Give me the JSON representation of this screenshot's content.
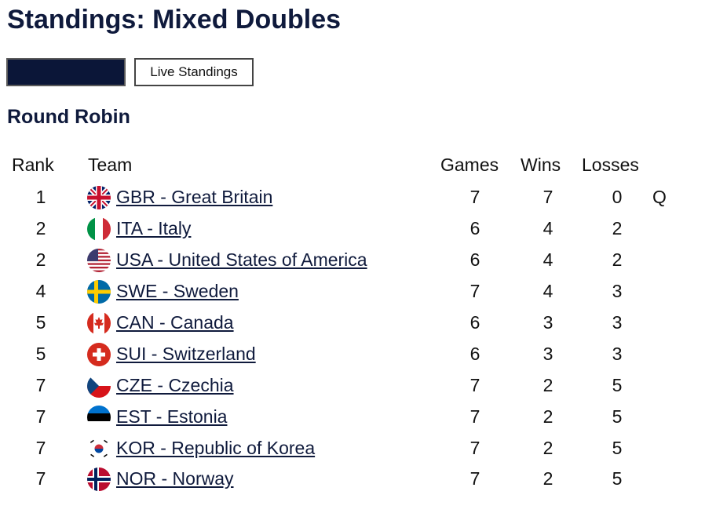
{
  "page": {
    "title": "Standings: Mixed Doubles"
  },
  "buttons": {
    "primary_label": "",
    "live_label": "Live Standings"
  },
  "section": {
    "title": "Round Robin"
  },
  "table": {
    "headers": {
      "rank": "Rank",
      "team": "Team",
      "games": "Games",
      "wins": "Wins",
      "losses": "Losses"
    },
    "rows": [
      {
        "rank": "1",
        "team": "GBR - Great Britain",
        "flag": "gbr-flag-icon",
        "games": "7",
        "wins": "7",
        "losses": "0",
        "q": "Q"
      },
      {
        "rank": "2",
        "team": "ITA - Italy",
        "flag": "ita-flag-icon",
        "games": "6",
        "wins": "4",
        "losses": "2",
        "q": ""
      },
      {
        "rank": "2",
        "team": "USA - United States of America",
        "flag": "usa-flag-icon",
        "games": "6",
        "wins": "4",
        "losses": "2",
        "q": ""
      },
      {
        "rank": "4",
        "team": "SWE - Sweden",
        "flag": "swe-flag-icon",
        "games": "7",
        "wins": "4",
        "losses": "3",
        "q": ""
      },
      {
        "rank": "5",
        "team": "CAN - Canada",
        "flag": "can-flag-icon",
        "games": "6",
        "wins": "3",
        "losses": "3",
        "q": ""
      },
      {
        "rank": "5",
        "team": "SUI - Switzerland",
        "flag": "sui-flag-icon",
        "games": "6",
        "wins": "3",
        "losses": "3",
        "q": ""
      },
      {
        "rank": "7",
        "team": "CZE - Czechia",
        "flag": "cze-flag-icon",
        "games": "7",
        "wins": "2",
        "losses": "5",
        "q": ""
      },
      {
        "rank": "7",
        "team": "EST - Estonia",
        "flag": "est-flag-icon",
        "games": "7",
        "wins": "2",
        "losses": "5",
        "q": ""
      },
      {
        "rank": "7",
        "team": "KOR - Republic of Korea",
        "flag": "kor-flag-icon",
        "games": "7",
        "wins": "2",
        "losses": "5",
        "q": ""
      },
      {
        "rank": "7",
        "team": "NOR - Norway",
        "flag": "nor-flag-icon",
        "games": "7",
        "wins": "2",
        "losses": "5",
        "q": ""
      }
    ]
  },
  "colors": {
    "heading": "#0f1a3c",
    "primary_button": "#0b1638"
  }
}
